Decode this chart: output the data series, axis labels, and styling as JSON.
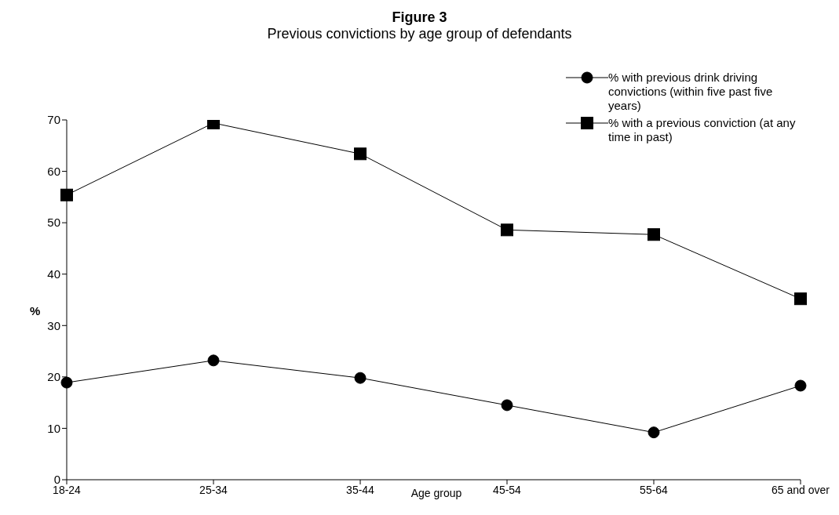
{
  "chart_data": {
    "type": "line",
    "title": "Figure 3",
    "subtitle": "Previous convictions by age group of defendants",
    "xlabel": "Age group",
    "ylabel": "%",
    "categories": [
      "18-24",
      "25-34",
      "35-44",
      "45-54",
      "55-64",
      "65 and over"
    ],
    "series": [
      {
        "name": "% with previous drink driving convictions (within five past five years)",
        "color": "#000000",
        "marker": "circle",
        "values": [
          18.9,
          23.2,
          19.8,
          14.5,
          9.2,
          18.3
        ]
      },
      {
        "name": "% with a previous conviction (at any time in past)",
        "color": "#000000",
        "marker": "square",
        "values": [
          55.4,
          69.4,
          63.4,
          48.6,
          47.7,
          35.2
        ]
      }
    ],
    "ylim": [
      0,
      70
    ],
    "yticks": [
      0,
      10,
      20,
      30,
      40,
      50,
      60,
      70
    ],
    "grid": false,
    "legend": "top right"
  }
}
